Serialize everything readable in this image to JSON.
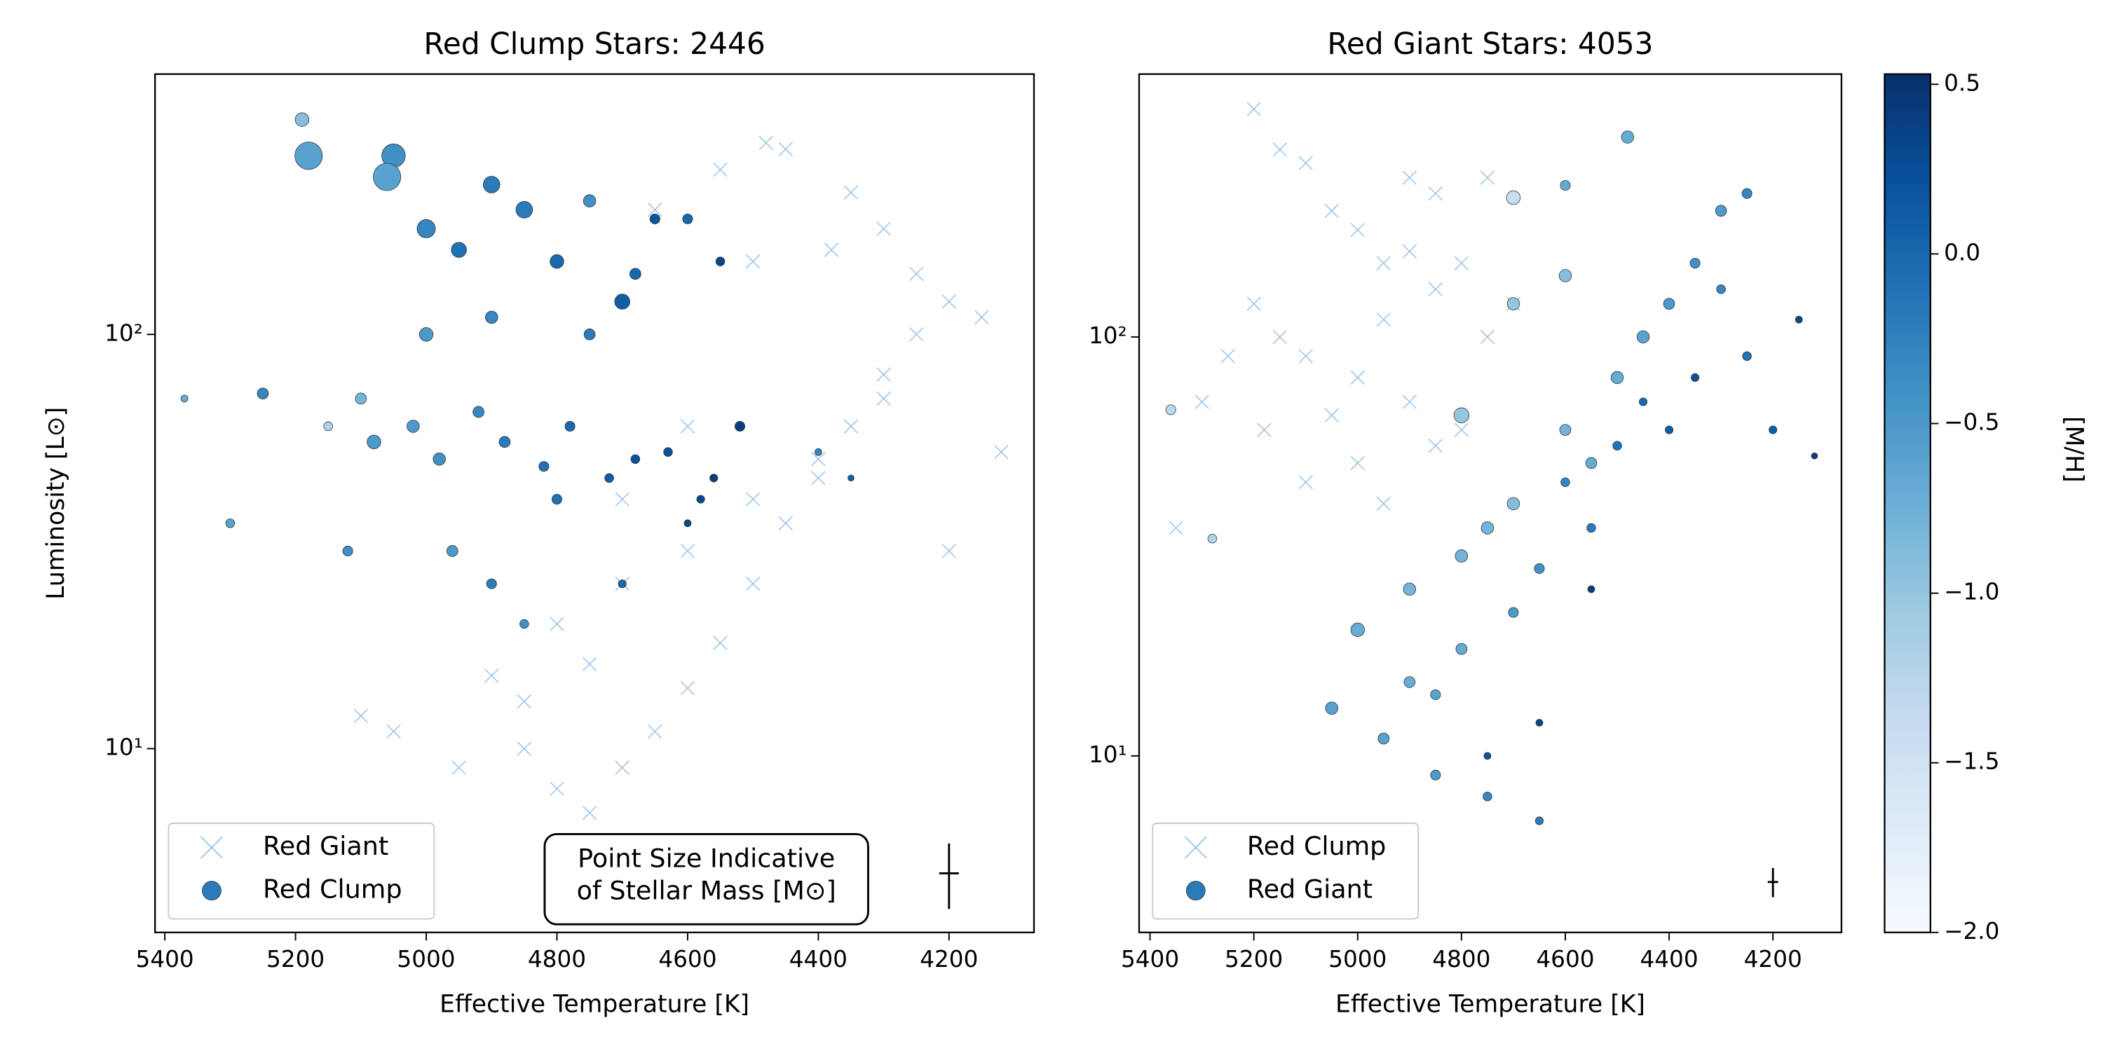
{
  "chart_data": [
    {
      "type": "scatter",
      "title": "Red Clump Stars: 2446",
      "xlabel": "Effective Temperature [K]",
      "ylabel": "Luminosity [L⊙]",
      "xlim": [
        5415,
        4070
      ],
      "xticks": [
        5400,
        5200,
        5000,
        4800,
        4600,
        4400,
        4200
      ],
      "ylim": [
        3.6,
        425
      ],
      "yscale": "log",
      "yticks": [
        {
          "value": 10,
          "label": "10¹"
        },
        {
          "value": 100,
          "label": "10²"
        }
      ],
      "colormap": "Blues",
      "clim": [
        -2.0,
        0.53
      ],
      "legend": "lower left",
      "annotation": [
        "Point Size Indicative",
        "of Stellar Mass [M⊙]"
      ],
      "error_bar": {
        "x": 4200,
        "y": 5,
        "xerr": 15,
        "yerr": 0.9
      },
      "series": [
        {
          "name": "Red Giant",
          "marker": "x",
          "color": "#5b9bd5",
          "x": [
            5100,
            5050,
            4950,
            4850,
            4800,
            4750,
            4700,
            4650,
            4600,
            4550,
            4500,
            4450,
            4400,
            4350,
            4300,
            4250,
            4200,
            4150,
            4120,
            4900,
            4800,
            4700,
            4600,
            4500,
            4400,
            4300,
            4650,
            4550,
            4450,
            4350,
            4750,
            4850,
            4700,
            4600,
            4500,
            4300,
            4200,
            4480,
            4380,
            4250
          ],
          "y": [
            12,
            11,
            9,
            10,
            8,
            7,
            9,
            11,
            14,
            18,
            25,
            35,
            45,
            60,
            80,
            100,
            120,
            110,
            52,
            15,
            20,
            25,
            30,
            40,
            50,
            70,
            200,
            250,
            280,
            220,
            16,
            13,
            40,
            60,
            150,
            180,
            30,
            290,
            160,
            140
          ]
        },
        {
          "name": "Red Clump",
          "marker": "o",
          "color": "#2a7ab9",
          "x": [
            5190,
            5180,
            5050,
            5060,
            5000,
            4950,
            4900,
            4850,
            4800,
            4750,
            4700,
            4650,
            4600,
            4550,
            4520,
            5100,
            5080,
            5020,
            4980,
            4920,
            4880,
            4820,
            4780,
            4720,
            4680,
            4630,
            4580,
            4560,
            5370,
            5300,
            5250,
            5150,
            5120,
            4960,
            4900,
            4850,
            4700,
            4900,
            5000,
            4600,
            4800,
            4750,
            4680,
            4400,
            4350
          ],
          "y": [
            330,
            270,
            270,
            240,
            180,
            160,
            230,
            200,
            150,
            210,
            120,
            190,
            190,
            150,
            60,
            70,
            55,
            60,
            50,
            65,
            55,
            48,
            60,
            45,
            50,
            52,
            40,
            45,
            70,
            35,
            72,
            60,
            30,
            30,
            25,
            20,
            25,
            110,
            100,
            35,
            40,
            100,
            140,
            52,
            45
          ],
          "c": [
            -0.9,
            -0.6,
            -0.4,
            -0.6,
            -0.3,
            -0.1,
            -0.2,
            -0.2,
            0.0,
            -0.4,
            0.1,
            0.2,
            0.0,
            0.3,
            0.4,
            -0.8,
            -0.5,
            -0.5,
            -0.4,
            -0.3,
            -0.2,
            -0.1,
            0.0,
            0.1,
            0.2,
            0.2,
            0.3,
            0.4,
            -0.7,
            -0.6,
            -0.3,
            -1.2,
            -0.4,
            -0.5,
            -0.2,
            -0.4,
            0.0,
            -0.3,
            -0.5,
            0.3,
            -0.1,
            -0.2,
            0.0,
            -0.3,
            0.1
          ],
          "s": [
            1.6,
            2.4,
            2.2,
            2.4,
            1.9,
            1.7,
            1.8,
            1.8,
            1.6,
            1.5,
            1.7,
            1.3,
            1.3,
            1.2,
            1.3,
            1.4,
            1.6,
            1.5,
            1.5,
            1.4,
            1.4,
            1.3,
            1.3,
            1.2,
            1.2,
            1.2,
            1.1,
            1.1,
            1.0,
            1.2,
            1.4,
            1.2,
            1.3,
            1.4,
            1.3,
            1.2,
            1.1,
            1.5,
            1.6,
            1.0,
            1.3,
            1.4,
            1.4,
            1.0,
            0.9
          ]
        }
      ]
    },
    {
      "type": "scatter",
      "title": "Red Giant Stars: 4053",
      "xlabel": "Effective Temperature [K]",
      "xlim": [
        5421,
        4068
      ],
      "xticks": [
        5400,
        5200,
        5000,
        4800,
        4600,
        4400,
        4200
      ],
      "ylim": [
        3.79,
        424
      ],
      "yscale": "log",
      "yticks": [
        {
          "value": 10,
          "label": "10¹"
        },
        {
          "value": 100,
          "label": "10²"
        }
      ],
      "colormap": "Blues",
      "clim": [
        -2.0,
        0.53
      ],
      "legend": "lower left",
      "error_bar": {
        "x": 4200,
        "y": 5,
        "xerr": 10,
        "yerr": 0.4
      },
      "colorbar": {
        "label": "[M/H]",
        "lim": [
          -2.0,
          0.53
        ],
        "ticks": [
          {
            "value": 0.5,
            "label": "0.5"
          },
          {
            "value": 0,
            "label": "0.0"
          },
          {
            "value": -0.5,
            "label": "−0.5"
          },
          {
            "value": -1.0,
            "label": "−1.0"
          },
          {
            "value": -1.5,
            "label": "−1.5"
          },
          {
            "value": -2.0,
            "label": "−2.0"
          }
        ]
      },
      "series": [
        {
          "name": "Red Clump",
          "marker": "x",
          "color": "#5b9bd5",
          "x": [
            5200,
            5150,
            5100,
            5050,
            5000,
            4950,
            4900,
            4850,
            4800,
            4750,
            5200,
            5150,
            5100,
            5000,
            4900,
            4800,
            5250,
            5300,
            5350,
            5100,
            5000,
            4950,
            4850,
            4700,
            5180,
            5050,
            4950,
            4900,
            4850,
            4750
          ],
          "y": [
            350,
            280,
            260,
            200,
            180,
            150,
            240,
            220,
            150,
            240,
            120,
            100,
            90,
            80,
            70,
            60,
            90,
            70,
            35,
            45,
            50,
            40,
            55,
            120,
            60,
            65,
            110,
            160,
            130,
            100
          ]
        },
        {
          "name": "Red Giant",
          "marker": "o",
          "color": "#2a7ab9",
          "x": [
            5050,
            5000,
            4950,
            4900,
            4850,
            4800,
            4750,
            4700,
            4650,
            4600,
            4550,
            4500,
            4450,
            4400,
            4350,
            4300,
            4250,
            4200,
            4150,
            4120,
            4900,
            4850,
            4800,
            4750,
            4700,
            4650,
            4600,
            4550,
            4500,
            4450,
            4400,
            4350,
            4300,
            4250,
            4800,
            4700,
            4600,
            4750,
            4650,
            4550,
            5360,
            5280,
            4700,
            4600,
            4480
          ],
          "y": [
            13,
            20,
            11,
            25,
            9,
            30,
            8,
            40,
            7,
            60,
            50,
            80,
            100,
            120,
            150,
            130,
            90,
            60,
            110,
            52,
            15,
            14,
            18,
            35,
            22,
            28,
            45,
            35,
            55,
            70,
            60,
            80,
            200,
            220,
            65,
            120,
            230,
            10,
            12,
            25,
            67,
            33,
            215,
            140,
            300
          ],
          "c": [
            -0.6,
            -0.7,
            -0.6,
            -0.8,
            -0.5,
            -0.8,
            -0.3,
            -0.9,
            -0.2,
            -0.8,
            -0.7,
            -0.7,
            -0.6,
            -0.5,
            -0.4,
            -0.3,
            -0.1,
            0.1,
            0.3,
            0.4,
            -0.7,
            -0.6,
            -0.7,
            -0.8,
            -0.5,
            -0.4,
            -0.3,
            -0.2,
            -0.1,
            0.0,
            0.1,
            0.2,
            -0.5,
            -0.3,
            -1.0,
            -1.0,
            -0.7,
            0.2,
            0.3,
            0.4,
            -1.3,
            -1.2,
            -1.4,
            -0.9,
            -0.7
          ],
          "s": [
            1.5,
            1.6,
            1.4,
            1.5,
            1.3,
            1.5,
            1.2,
            1.5,
            1.1,
            1.4,
            1.4,
            1.5,
            1.5,
            1.4,
            1.3,
            1.2,
            1.2,
            1.1,
            1.0,
            0.9,
            1.4,
            1.3,
            1.4,
            1.5,
            1.3,
            1.3,
            1.2,
            1.2,
            1.2,
            1.1,
            1.1,
            1.1,
            1.4,
            1.3,
            1.7,
            1.5,
            1.3,
            1.0,
            1.0,
            1.0,
            1.3,
            1.2,
            1.6,
            1.5,
            1.5
          ]
        }
      ]
    }
  ]
}
